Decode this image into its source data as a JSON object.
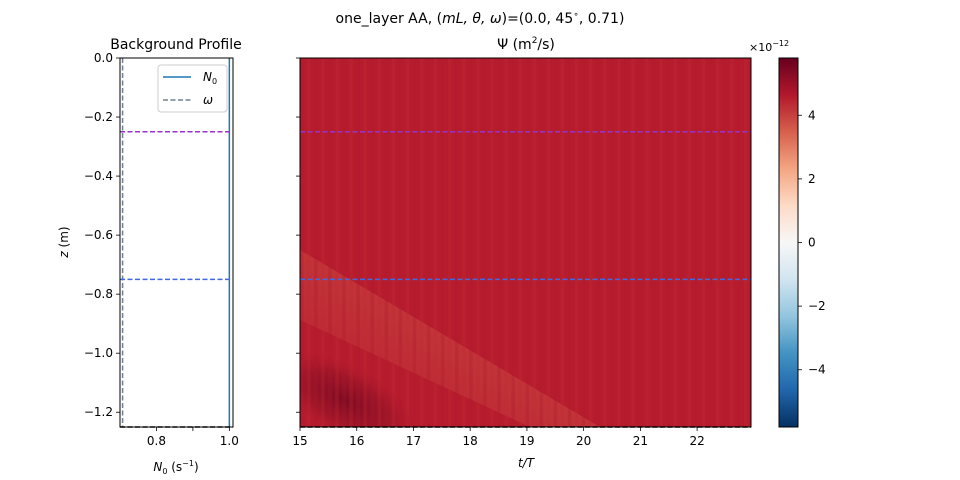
{
  "figure": {
    "suptitle_prefix": "one_layer AA, (",
    "suptitle_vars": "mL, θ, ω",
    "suptitle_suffix": ")=(0.0, 45",
    "suptitle_deg": "∘",
    "suptitle_end": ", 0.71)"
  },
  "chart_data": [
    {
      "type": "line",
      "title": "Background Profile",
      "xlabel_sym": "N",
      "xlabel_sub": "0",
      "xlabel_unit": " (s",
      "xlabel_exp": "−1",
      "xlabel_close": ")",
      "ylabel_sym": "z",
      "ylabel_unit": " (m)",
      "xlim": [
        0.7,
        1.01
      ],
      "ylim": [
        -1.25,
        0.0
      ],
      "xticks": [
        0.8,
        0.9,
        1.0
      ],
      "xtick_labels": [
        "0.8",
        "",
        "1.0"
      ],
      "yticks": [
        0.0,
        -0.2,
        -0.4,
        -0.6,
        -0.8,
        -1.0,
        -1.2
      ],
      "ytick_labels": [
        "0.0",
        "−0.2",
        "−0.4",
        "−0.6",
        "−0.8",
        "−1.0",
        "−1.2"
      ],
      "legend_position": "upper right",
      "series": [
        {
          "name_sym": "N",
          "name_sub": "0",
          "x": [
            1.0,
            1.0
          ],
          "y": [
            0.0,
            -1.25
          ],
          "color": "#1f77b4",
          "style": "solid"
        },
        {
          "name_sym": "ω",
          "name_sub": "",
          "x": [
            0.7071,
            0.7071
          ],
          "y": [
            0.0,
            -1.25
          ],
          "color": "#708090",
          "style": "dashed"
        }
      ],
      "hlines": [
        {
          "y": -0.25,
          "color": "#9932cc",
          "style": "dashed"
        },
        {
          "y": -0.75,
          "color": "#4169e1",
          "style": "dashed"
        },
        {
          "y": -1.25,
          "color": "#000000",
          "style": "dashed"
        }
      ]
    },
    {
      "type": "heatmap",
      "title_sym": "Ψ",
      "title_unit": " (m",
      "title_exp": "2",
      "title_close": "/s)",
      "xlabel_sym": "t/T",
      "xlim": [
        15,
        22.95
      ],
      "ylim": [
        -1.25,
        0.0
      ],
      "xticks": [
        15,
        16,
        17,
        18,
        19,
        20,
        21,
        22
      ],
      "xtick_labels": [
        "15",
        "16",
        "17",
        "18",
        "19",
        "20",
        "21",
        "22"
      ],
      "yticks": [
        0.0,
        -0.2,
        -0.4,
        -0.6,
        -0.8,
        -1.0,
        -1.2
      ],
      "colormap": "RdBu_r",
      "clim": [
        -5.8e-12,
        5.8e-12
      ],
      "dominant_value": 4.6e-12,
      "peak_value": 5.8e-12,
      "peak_location": {
        "t": 16.2,
        "z": -1.23
      },
      "hlines": [
        {
          "y": -0.25,
          "color": "#9932cc",
          "style": "dashed"
        },
        {
          "y": -0.75,
          "color": "#4169e1",
          "style": "dashed"
        },
        {
          "y": -1.25,
          "color": "#000000",
          "style": "dashed"
        }
      ]
    },
    {
      "type": "colorbar",
      "multiplier_base": "×10",
      "multiplier_exp": "−12",
      "range": [
        -5.8,
        5.8
      ],
      "ticks": [
        4,
        2,
        0,
        -2,
        -4
      ],
      "tick_labels": [
        "4",
        "2",
        "0",
        "−2",
        "−4"
      ]
    }
  ]
}
